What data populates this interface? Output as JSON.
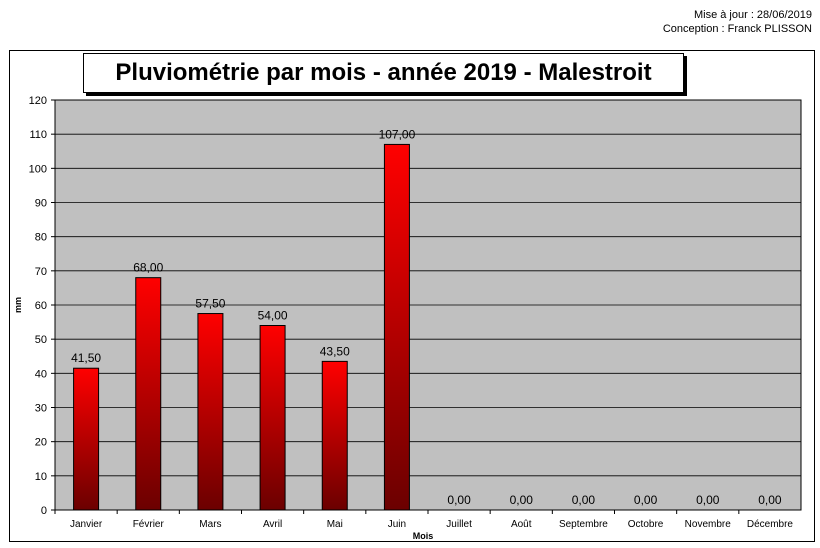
{
  "header": {
    "updated": "Mise à jour : 28/06/2019",
    "author": "Conception : Franck PLISSON"
  },
  "colors": {
    "bar_top": "#ff0000",
    "bar_bottom": "#6b0000",
    "plot_bg": "#c0c0c0"
  },
  "chart_data": {
    "type": "bar",
    "title": "Pluviométrie par mois - année 2019 - Malestroit",
    "xlabel": "Mois",
    "ylabel": "mm",
    "ylim": [
      0,
      120
    ],
    "yticks": [
      0,
      10,
      20,
      30,
      40,
      50,
      60,
      70,
      80,
      90,
      100,
      110,
      120
    ],
    "grid": true,
    "categories": [
      "Janvier",
      "Février",
      "Mars",
      "Avril",
      "Mai",
      "Juin",
      "Juillet",
      "Août",
      "Septembre",
      "Octobre",
      "Novembre",
      "Décembre"
    ],
    "values": [
      41.5,
      68,
      57.5,
      54,
      43.5,
      107,
      0,
      0,
      0,
      0,
      0,
      0
    ],
    "data_labels": [
      "41,50",
      "68,00",
      "57,50",
      "54,00",
      "43,50",
      "107,00",
      "0,00",
      "0,00",
      "0,00",
      "0,00",
      "0,00",
      "0,00"
    ]
  }
}
